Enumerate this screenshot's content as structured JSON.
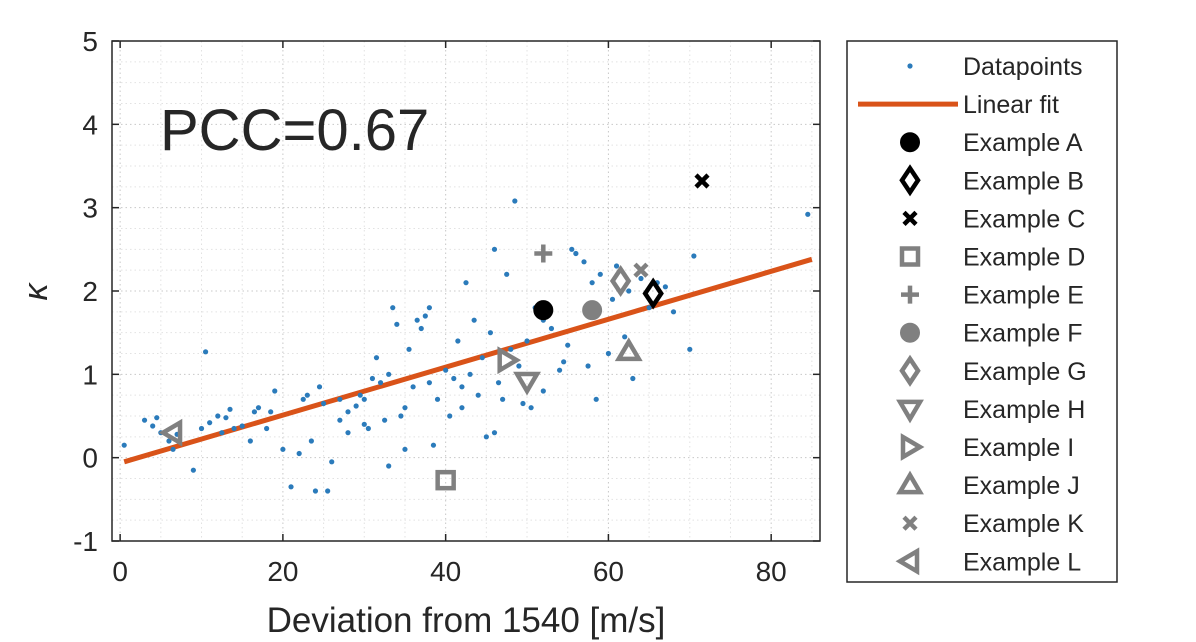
{
  "chart_data": {
    "type": "scatter",
    "xlabel": "Deviation from 1540 [m/s]",
    "ylabel": "κ",
    "xlim": [
      -1,
      86
    ],
    "ylim": [
      -1,
      5
    ],
    "xticks": [
      0,
      20,
      40,
      60,
      80
    ],
    "yticks": [
      -1,
      0,
      1,
      2,
      3,
      4,
      5
    ],
    "xtick_labels": [
      "0",
      "20",
      "40",
      "60",
      "80"
    ],
    "ytick_labels": [
      "-1",
      "0",
      "1",
      "2",
      "3",
      "4",
      "5"
    ],
    "grid": true,
    "annotation": "PCC=0.67",
    "legend_position": "outside-right",
    "colors": {
      "datapoints": "#2b7bbb",
      "fit": "#d95319",
      "black": "#000000",
      "gray": "#808080"
    },
    "datapoints": {
      "name": "Datapoints",
      "points": [
        [
          0.5,
          0.15
        ],
        [
          3,
          0.45
        ],
        [
          4,
          0.38
        ],
        [
          4.5,
          0.48
        ],
        [
          5,
          0.3
        ],
        [
          6,
          0.2
        ],
        [
          6.5,
          0.1
        ],
        [
          7,
          0.28
        ],
        [
          9,
          -0.15
        ],
        [
          10,
          0.35
        ],
        [
          10.5,
          1.27
        ],
        [
          11,
          0.42
        ],
        [
          12,
          0.5
        ],
        [
          12.5,
          0.3
        ],
        [
          13,
          0.48
        ],
        [
          13.5,
          0.58
        ],
        [
          14,
          0.35
        ],
        [
          15,
          0.38
        ],
        [
          16,
          0.2
        ],
        [
          16.5,
          0.55
        ],
        [
          17,
          0.6
        ],
        [
          18,
          0.35
        ],
        [
          18.5,
          0.55
        ],
        [
          19,
          0.8
        ],
        [
          20,
          0.1
        ],
        [
          21,
          -0.35
        ],
        [
          22,
          0.05
        ],
        [
          22.5,
          0.7
        ],
        [
          23,
          0.75
        ],
        [
          23.5,
          0.2
        ],
        [
          24,
          -0.4
        ],
        [
          24.5,
          0.85
        ],
        [
          25,
          0.65
        ],
        [
          25.5,
          -0.4
        ],
        [
          26,
          -0.05
        ],
        [
          27,
          0.45
        ],
        [
          28,
          0.55
        ],
        [
          29,
          0.62
        ],
        [
          29.5,
          0.75
        ],
        [
          30,
          0.7
        ],
        [
          30.5,
          0.35
        ],
        [
          31,
          0.95
        ],
        [
          31.5,
          1.2
        ],
        [
          32,
          0.9
        ],
        [
          32.5,
          0.45
        ],
        [
          33,
          1.0
        ],
        [
          33.5,
          1.8
        ],
        [
          34,
          1.6
        ],
        [
          34.5,
          0.5
        ],
        [
          35,
          0.6
        ],
        [
          35.5,
          1.3
        ],
        [
          36,
          0.85
        ],
        [
          36.5,
          1.65
        ],
        [
          37,
          1.55
        ],
        [
          37.5,
          1.7
        ],
        [
          38,
          0.9
        ],
        [
          38.5,
          0.15
        ],
        [
          39,
          0.7
        ],
        [
          40,
          1.05
        ],
        [
          40.5,
          0.5
        ],
        [
          41,
          0.95
        ],
        [
          41.5,
          1.4
        ],
        [
          42,
          0.6
        ],
        [
          42.5,
          2.1
        ],
        [
          43,
          1.0
        ],
        [
          43.5,
          1.65
        ],
        [
          44,
          0.75
        ],
        [
          44.5,
          1.2
        ],
        [
          45,
          0.25
        ],
        [
          45.5,
          1.5
        ],
        [
          46,
          2.5
        ],
        [
          46.5,
          0.9
        ],
        [
          47,
          0.7
        ],
        [
          47.5,
          2.2
        ],
        [
          48,
          1.3
        ],
        [
          48.5,
          3.08
        ],
        [
          49,
          1.1
        ],
        [
          49.5,
          0.65
        ],
        [
          50,
          1.4
        ],
        [
          50.5,
          0.6
        ],
        [
          51,
          1.8
        ],
        [
          52,
          0.8
        ],
        [
          53,
          1.55
        ],
        [
          54,
          1.05
        ],
        [
          55,
          1.35
        ],
        [
          55.5,
          2.5
        ],
        [
          56,
          2.45
        ],
        [
          57,
          2.35
        ],
        [
          57.5,
          1.1
        ],
        [
          58,
          2.1
        ],
        [
          58.5,
          0.7
        ],
        [
          59,
          2.2
        ],
        [
          60,
          1.25
        ],
        [
          60.5,
          1.9
        ],
        [
          61,
          2.3
        ],
        [
          62,
          1.45
        ],
        [
          62.5,
          2.0
        ],
        [
          63,
          0.95
        ],
        [
          64,
          2.15
        ],
        [
          65,
          1.8
        ],
        [
          66,
          2.1
        ],
        [
          67,
          2.05
        ],
        [
          68,
          1.75
        ],
        [
          70,
          1.3
        ],
        [
          70.5,
          2.42
        ],
        [
          84.5,
          2.92
        ],
        [
          35,
          0.1
        ],
        [
          33,
          -0.1
        ],
        [
          28,
          0.3
        ],
        [
          42,
          0.85
        ],
        [
          46,
          0.3
        ],
        [
          52,
          1.65
        ],
        [
          54.5,
          1.15
        ],
        [
          38,
          1.8
        ],
        [
          30,
          0.4
        ],
        [
          27,
          0.7
        ]
      ]
    },
    "fit": {
      "name": "Linear fit",
      "x": [
        0.5,
        85
      ],
      "y": [
        -0.05,
        2.38
      ]
    },
    "examples": [
      {
        "name": "Example A",
        "marker": "circle",
        "color": "black",
        "fill": true,
        "x": 52,
        "y": 1.77
      },
      {
        "name": "Example B",
        "marker": "diamond",
        "color": "black",
        "fill": false,
        "x": 65.5,
        "y": 1.97
      },
      {
        "name": "Example C",
        "marker": "x",
        "color": "black",
        "fill": false,
        "x": 71.5,
        "y": 3.32
      },
      {
        "name": "Example D",
        "marker": "square",
        "color": "gray",
        "fill": false,
        "x": 40,
        "y": -0.27
      },
      {
        "name": "Example E",
        "marker": "plus",
        "color": "gray",
        "fill": false,
        "x": 52,
        "y": 2.45
      },
      {
        "name": "Example F",
        "marker": "circle",
        "color": "gray",
        "fill": true,
        "x": 58,
        "y": 1.77
      },
      {
        "name": "Example G",
        "marker": "diamond",
        "color": "gray",
        "fill": false,
        "x": 61.5,
        "y": 2.12
      },
      {
        "name": "Example H",
        "marker": "triangle-down",
        "color": "gray",
        "fill": false,
        "x": 50,
        "y": 0.92
      },
      {
        "name": "Example I",
        "marker": "triangle-right",
        "color": "gray",
        "fill": false,
        "x": 47.5,
        "y": 1.17
      },
      {
        "name": "Example J",
        "marker": "triangle-up",
        "color": "gray",
        "fill": false,
        "x": 62.5,
        "y": 1.27
      },
      {
        "name": "Example K",
        "marker": "x",
        "color": "gray",
        "fill": false,
        "x": 64,
        "y": 2.25
      },
      {
        "name": "Example L",
        "marker": "triangle-left",
        "color": "gray",
        "fill": false,
        "x": 6.5,
        "y": 0.3
      }
    ]
  }
}
